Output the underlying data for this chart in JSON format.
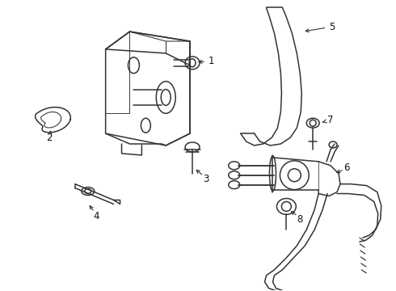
{
  "background_color": "#ffffff",
  "line_color": "#333333",
  "lw": 1.1,
  "fig_width": 4.9,
  "fig_height": 3.6,
  "dpi": 100,
  "font_size": 8.5,
  "label_color": "#111111"
}
